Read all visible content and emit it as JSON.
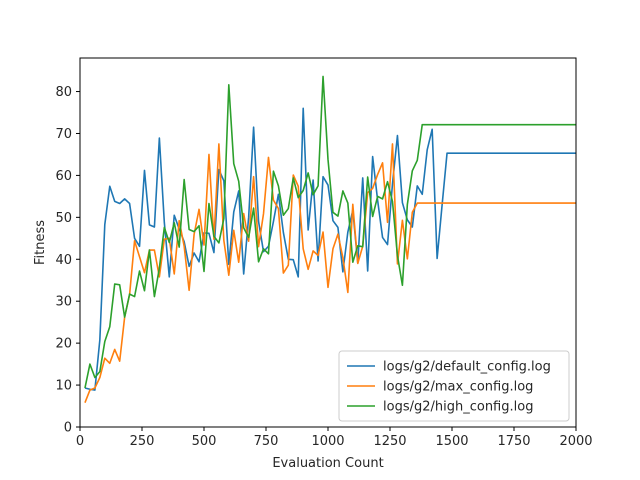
{
  "chart_data": {
    "type": "line",
    "title": "",
    "xlabel": "Evaluation Count",
    "ylabel": "Fitness",
    "xlim": [
      0,
      2000
    ],
    "ylim": [
      0,
      88
    ],
    "xticks": [
      0,
      250,
      500,
      750,
      1000,
      1250,
      1500,
      1750,
      2000
    ],
    "yticks": [
      0,
      10,
      20,
      30,
      40,
      50,
      60,
      70,
      80
    ],
    "grid": false,
    "legend_position": "lower-right",
    "x": [
      20,
      40,
      60,
      80,
      100,
      120,
      140,
      160,
      180,
      200,
      220,
      240,
      260,
      280,
      300,
      320,
      340,
      360,
      380,
      400,
      420,
      440,
      460,
      480,
      500,
      520,
      540,
      560,
      580,
      600,
      620,
      640,
      660,
      680,
      700,
      720,
      740,
      760,
      780,
      800,
      820,
      840,
      860,
      880,
      900,
      920,
      940,
      960,
      980,
      1000,
      1020,
      1040,
      1060,
      1080,
      1100,
      1120,
      1140,
      1160,
      1180,
      1200,
      1220,
      1240,
      1260,
      1280,
      1300,
      1320,
      1340,
      1360,
      1380,
      1400,
      1420,
      1440,
      1460,
      1480,
      1500,
      1520,
      1540,
      1560,
      1580,
      1600,
      1620,
      1640,
      1660,
      1680,
      1700,
      1720,
      1740,
      1760,
      1780,
      1800,
      1820,
      1840,
      1860,
      1880,
      1900,
      1920,
      1940,
      1960,
      1980,
      2000
    ],
    "series": [
      {
        "name": "logs/g2/default_config.log",
        "color": "#1f77b4",
        "values": [
          9.3,
          9,
          8.8,
          20.8,
          48.3,
          57.4,
          53.8,
          53.3,
          54.4,
          53.3,
          45,
          43.1,
          61.2,
          48.2,
          47.7,
          68.9,
          48.8,
          35.8,
          50.5,
          47.2,
          44.2,
          38.3,
          41.5,
          39.4,
          46.3,
          46.2,
          41.6,
          61.4,
          58.7,
          38.8,
          51.3,
          56.3,
          36.5,
          50,
          71.5,
          49,
          41.8,
          43.1,
          49,
          55.5,
          46.4,
          40,
          39.9,
          35.8,
          76,
          47,
          58.9,
          39.6,
          59.7,
          57.7,
          49.2,
          47.6,
          37,
          46.5,
          51.7,
          39.1,
          59.4,
          37.2,
          64.5,
          54.1,
          45.2,
          43.5,
          58,
          69.5,
          53.5,
          49.4,
          47.7,
          57.5,
          55.5,
          66.1,
          71,
          40.2,
          52.9,
          65.3,
          65.3,
          65.3,
          65.3,
          65.3,
          65.3,
          65.3,
          65.3,
          65.3,
          65.3,
          65.3,
          65.3,
          65.3,
          65.3,
          65.3,
          65.3,
          65.3,
          65.3,
          65.3,
          65.3,
          65.3,
          65.3,
          65.3,
          65.3,
          65.3,
          65.3,
          65.3
        ]
      },
      {
        "name": "logs/g2/max_config.log",
        "color": "#ff7f0e",
        "values": [
          5.8,
          8.8,
          9.3,
          11.8,
          16.4,
          15.2,
          18.5,
          15.7,
          26.2,
          31.6,
          44.4,
          40.6,
          36.8,
          42.2,
          42.2,
          35.8,
          44.8,
          45,
          36.5,
          49.2,
          43.1,
          32.6,
          45.9,
          51.9,
          43.4,
          65,
          44.8,
          67.5,
          44.5,
          36.2,
          46.9,
          39.3,
          50.9,
          44.3,
          59.7,
          43,
          50.9,
          64.3,
          54.1,
          52.1,
          36.7,
          38.6,
          60.1,
          57.4,
          42.5,
          37.6,
          42,
          40.9,
          46.5,
          33.3,
          42.5,
          46,
          40.4,
          32.1,
          53.1,
          39,
          43.1,
          55.9,
          56.9,
          60.2,
          63,
          48.8,
          67.5,
          38.9,
          49.3,
          40.1,
          51.2,
          53.4,
          53.4,
          53.4,
          53.4,
          53.4,
          53.4,
          53.4,
          53.4,
          53.4,
          53.4,
          53.4,
          53.4,
          53.4,
          53.4,
          53.4,
          53.4,
          53.4,
          53.4,
          53.4,
          53.4,
          53.4,
          53.4,
          53.4,
          53.4,
          53.4,
          53.4,
          53.4,
          53.4,
          53.4,
          53.4,
          53.4,
          53.4,
          53.4
        ]
      },
      {
        "name": "logs/g2/high_config.log",
        "color": "#2ca02c",
        "values": [
          9.3,
          15,
          11.8,
          13.2,
          20.4,
          23.9,
          34.1,
          33.9,
          26.2,
          31.7,
          31.1,
          37.2,
          32.5,
          42.2,
          31.1,
          37.9,
          47.6,
          44,
          48.7,
          42.9,
          59,
          47.1,
          46.6,
          48,
          37.1,
          53.3,
          45.5,
          43.9,
          49.7,
          81.6,
          62.8,
          58.6,
          47.5,
          45.2,
          52.2,
          39.4,
          42.5,
          41.3,
          61,
          57.5,
          50.5,
          52.1,
          59.4,
          54.7,
          56.4,
          60.6,
          55.4,
          57.5,
          83.6,
          63.8,
          51.2,
          50.3,
          56.3,
          53.4,
          39.3,
          43.2,
          43,
          59.6,
          50.2,
          55,
          54.4,
          58.5,
          53.8,
          40.9,
          33.8,
          53.1,
          61.1,
          63.6,
          72.1,
          72.1,
          72.1,
          72.1,
          72.1,
          72.1,
          72.1,
          72.1,
          72.1,
          72.1,
          72.1,
          72.1,
          72.1,
          72.1,
          72.1,
          72.1,
          72.1,
          72.1,
          72.1,
          72.1,
          72.1,
          72.1,
          72.1,
          72.1,
          72.1,
          72.1,
          72.1,
          72.1,
          72.1,
          72.1,
          72.1,
          72.1
        ]
      }
    ]
  }
}
